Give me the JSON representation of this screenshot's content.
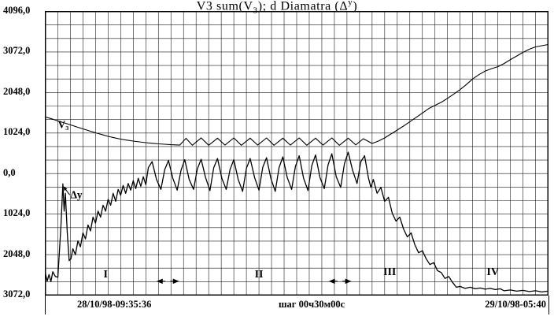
{
  "colors": {
    "ink": "#000000",
    "background": "#ffffff"
  },
  "title": {
    "p1": "V3 sum(V",
    "sub1": "3",
    "p2": "); d Diamatra (Δ",
    "sup1": "у",
    "p3": ")"
  },
  "chart_data": {
    "type": "line",
    "title": "V3 sum(V3); d Diamatra (Δу)",
    "grid": "on",
    "x_axis": {
      "left_label": "28/10/98-09:35:36",
      "center_label": "шаг 00ч30м00с",
      "right_label": "29/10/98-05:40",
      "steps": 40,
      "step_minutes": 30
    },
    "y_axis": {
      "min": -3072,
      "max": 4096,
      "major_interval": 1024,
      "minor_per_major": 3,
      "tick_labels": [
        "4096,0",
        "3072,0",
        "2048,0",
        "1024,0",
        "0,0",
        "1024,0",
        "2048,0",
        "3072,0"
      ],
      "tick_values": [
        4096,
        3072,
        2048,
        1024,
        0,
        -1024,
        -2048,
        -3072
      ]
    },
    "series": [
      {
        "name": "V3",
        "label": "V₃",
        "label_pos": [
          1.0,
          1150
        ],
        "stroke_width": 1.1,
        "points": [
          [
            0,
            1430
          ],
          [
            0.5,
            1385
          ],
          [
            1,
            1330
          ],
          [
            1.5,
            1280
          ],
          [
            2,
            1230
          ],
          [
            2.5,
            1180
          ],
          [
            3,
            1130
          ],
          [
            3.5,
            1080
          ],
          [
            4,
            1030
          ],
          [
            4.5,
            985
          ],
          [
            5,
            940
          ],
          [
            5.5,
            905
          ],
          [
            6,
            870
          ],
          [
            6.5,
            845
          ],
          [
            7,
            820
          ],
          [
            7.5,
            800
          ],
          [
            8,
            780
          ],
          [
            8.5,
            765
          ],
          [
            9,
            750
          ],
          [
            9.5,
            740
          ],
          [
            10,
            730
          ],
          [
            10.7,
            720
          ],
          [
            11.2,
            890
          ],
          [
            11.7,
            715
          ],
          [
            12.4,
            900
          ],
          [
            13,
            715
          ],
          [
            13.7,
            895
          ],
          [
            14.3,
            720
          ],
          [
            15,
            900
          ],
          [
            15.6,
            715
          ],
          [
            16.3,
            895
          ],
          [
            16.9,
            720
          ],
          [
            17.6,
            900
          ],
          [
            18.2,
            715
          ],
          [
            18.9,
            895
          ],
          [
            19.5,
            720
          ],
          [
            20.2,
            900
          ],
          [
            20.8,
            715
          ],
          [
            21.5,
            895
          ],
          [
            22.1,
            720
          ],
          [
            22.8,
            900
          ],
          [
            23.4,
            715
          ],
          [
            24.1,
            895
          ],
          [
            24.7,
            725
          ],
          [
            25.3,
            880
          ],
          [
            26,
            760
          ],
          [
            26.5,
            820
          ],
          [
            27,
            900
          ],
          [
            27.5,
            1000
          ],
          [
            28,
            1100
          ],
          [
            28.5,
            1200
          ],
          [
            29,
            1310
          ],
          [
            29.5,
            1420
          ],
          [
            30,
            1530
          ],
          [
            30.5,
            1640
          ],
          [
            31,
            1720
          ],
          [
            31.5,
            1800
          ],
          [
            32,
            1900
          ],
          [
            32.5,
            2010
          ],
          [
            33,
            2120
          ],
          [
            33.5,
            2250
          ],
          [
            34,
            2390
          ],
          [
            34.5,
            2500
          ],
          [
            35,
            2590
          ],
          [
            35.5,
            2650
          ],
          [
            36,
            2700
          ],
          [
            36.5,
            2780
          ],
          [
            37,
            2880
          ],
          [
            37.5,
            2970
          ],
          [
            38,
            3060
          ],
          [
            38.5,
            3140
          ],
          [
            39,
            3200
          ],
          [
            39.5,
            3230
          ],
          [
            40,
            3260
          ]
        ]
      },
      {
        "name": "dY",
        "label": "Δу",
        "label_pos": [
          2.0,
          -620
        ],
        "arrow_from": [
          1.95,
          -540
        ],
        "arrow_to": [
          1.45,
          -330
        ],
        "stroke_width": 1.3,
        "points": [
          [
            0,
            -2500
          ],
          [
            0.15,
            -2720
          ],
          [
            0.3,
            -2550
          ],
          [
            0.45,
            -2730
          ],
          [
            0.6,
            -2480
          ],
          [
            0.8,
            -2600
          ],
          [
            1,
            -2620
          ],
          [
            1.1,
            -2100
          ],
          [
            1.25,
            -1300
          ],
          [
            1.4,
            -260
          ],
          [
            1.5,
            -950
          ],
          [
            1.6,
            -500
          ],
          [
            1.75,
            -1500
          ],
          [
            1.9,
            -2200
          ],
          [
            2.05,
            -2150
          ],
          [
            2.2,
            -1900
          ],
          [
            2.4,
            -2050
          ],
          [
            2.6,
            -1700
          ],
          [
            2.8,
            -1850
          ],
          [
            3,
            -1500
          ],
          [
            3.2,
            -1650
          ],
          [
            3.4,
            -1300
          ],
          [
            3.6,
            -1450
          ],
          [
            3.8,
            -1100
          ],
          [
            4,
            -1250
          ],
          [
            4.2,
            -950
          ],
          [
            4.4,
            -1100
          ],
          [
            4.6,
            -800
          ],
          [
            4.8,
            -950
          ],
          [
            5,
            -650
          ],
          [
            5.2,
            -800
          ],
          [
            5.4,
            -500
          ],
          [
            5.6,
            -700
          ],
          [
            5.8,
            -400
          ],
          [
            6,
            -550
          ],
          [
            6.2,
            -300
          ],
          [
            6.4,
            -500
          ],
          [
            6.6,
            -250
          ],
          [
            6.8,
            -420
          ],
          [
            7,
            -180
          ],
          [
            7.2,
            -380
          ],
          [
            7.4,
            -120
          ],
          [
            7.6,
            -320
          ],
          [
            7.8,
            -80
          ],
          [
            8,
            -280
          ],
          [
            8.2,
            150
          ],
          [
            8.5,
            300
          ],
          [
            8.85,
            -150
          ],
          [
            9.2,
            -400
          ],
          [
            9.5,
            100
          ],
          [
            9.8,
            330
          ],
          [
            10.15,
            -120
          ],
          [
            10.5,
            -420
          ],
          [
            10.8,
            80
          ],
          [
            11.1,
            350
          ],
          [
            11.45,
            -150
          ],
          [
            11.8,
            -400
          ],
          [
            12.1,
            120
          ],
          [
            12.4,
            360
          ],
          [
            12.75,
            -100
          ],
          [
            13.1,
            -430
          ],
          [
            13.4,
            150
          ],
          [
            13.7,
            380
          ],
          [
            14.05,
            -120
          ],
          [
            14.4,
            -400
          ],
          [
            14.7,
            100
          ],
          [
            15,
            350
          ],
          [
            15.35,
            -150
          ],
          [
            15.7,
            -450
          ],
          [
            16,
            130
          ],
          [
            16.3,
            380
          ],
          [
            16.65,
            -100
          ],
          [
            17,
            -420
          ],
          [
            17.3,
            160
          ],
          [
            17.6,
            400
          ],
          [
            17.95,
            -130
          ],
          [
            18.3,
            -450
          ],
          [
            18.6,
            150
          ],
          [
            18.9,
            420
          ],
          [
            19.25,
            -100
          ],
          [
            19.6,
            -400
          ],
          [
            19.9,
            180
          ],
          [
            20.2,
            450
          ],
          [
            20.55,
            -120
          ],
          [
            20.9,
            -430
          ],
          [
            21.2,
            200
          ],
          [
            21.5,
            470
          ],
          [
            21.85,
            -100
          ],
          [
            22.2,
            -380
          ],
          [
            22.5,
            220
          ],
          [
            22.8,
            500
          ],
          [
            23.15,
            -80
          ],
          [
            23.5,
            -350
          ],
          [
            23.8,
            250
          ],
          [
            24.1,
            540
          ],
          [
            24.45,
            80
          ],
          [
            24.8,
            -250
          ],
          [
            25.1,
            300
          ],
          [
            25.4,
            450
          ],
          [
            25.7,
            -100
          ],
          [
            25.9,
            -350
          ],
          [
            26.1,
            -150
          ],
          [
            26.4,
            -500
          ],
          [
            26.7,
            -350
          ],
          [
            27,
            -700
          ],
          [
            27.3,
            -600
          ],
          [
            27.6,
            -1000
          ],
          [
            27.9,
            -1200
          ],
          [
            28.2,
            -1100
          ],
          [
            28.5,
            -1400
          ],
          [
            28.8,
            -1600
          ],
          [
            29.1,
            -1500
          ],
          [
            29.4,
            -1800
          ],
          [
            29.7,
            -2000
          ],
          [
            30,
            -1950
          ],
          [
            30.3,
            -2150
          ],
          [
            30.6,
            -2300
          ],
          [
            30.9,
            -2250
          ],
          [
            31.2,
            -2450
          ],
          [
            31.5,
            -2500
          ],
          [
            31.8,
            -2650
          ],
          [
            32.1,
            -2600
          ],
          [
            32.4,
            -2750
          ],
          [
            32.7,
            -2870
          ],
          [
            33,
            -2850
          ],
          [
            33.4,
            -2900
          ],
          [
            33.8,
            -2870
          ],
          [
            34.2,
            -2910
          ],
          [
            34.6,
            -2890
          ],
          [
            35,
            -2920
          ],
          [
            35.4,
            -2900
          ],
          [
            35.8,
            -2930
          ],
          [
            36.2,
            -2910
          ],
          [
            36.5,
            -2960
          ],
          [
            37,
            -2940
          ],
          [
            37.5,
            -2970
          ],
          [
            38,
            -2950
          ],
          [
            38.5,
            -2980
          ],
          [
            39,
            -2960
          ],
          [
            39.5,
            -2990
          ],
          [
            40,
            -2970
          ]
        ]
      }
    ],
    "regions": [
      {
        "label": "I",
        "step": 4.8,
        "value": -2620
      },
      {
        "label": "II",
        "step": 17.0,
        "value": -2620
      },
      {
        "label": "III",
        "step": 27.4,
        "value": -2560
      },
      {
        "label": "IV",
        "step": 35.6,
        "value": -2560
      }
    ],
    "boundary_markers": [
      {
        "step": 9.75,
        "value": -2720
      },
      {
        "step": 23.45,
        "value": -2720
      }
    ]
  }
}
